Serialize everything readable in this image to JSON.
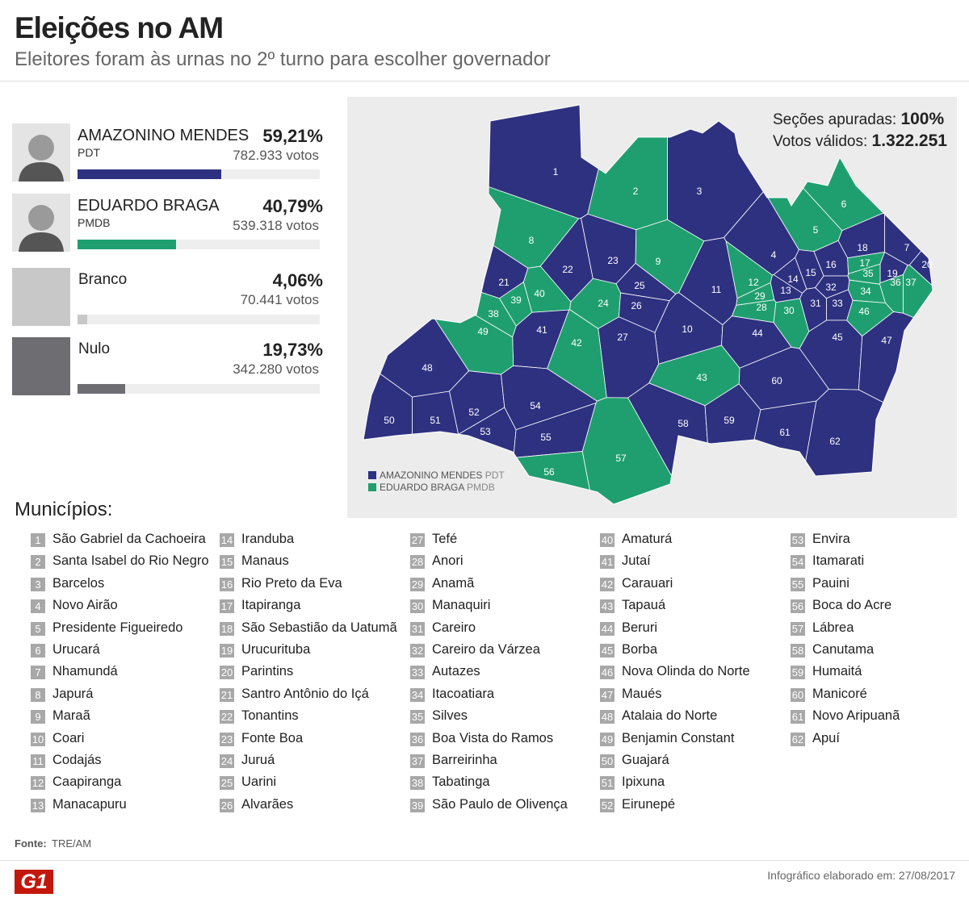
{
  "header": {
    "title": "Eleições no AM",
    "subtitle": "Eleitores foram às urnas no 2º turno para escolher governador"
  },
  "results": [
    {
      "name": "AMAZONINO MENDES",
      "party": "PDT",
      "percent": {
        "value": 59.21,
        "label": "59,21%"
      },
      "votes": "782.933 votos",
      "color": "#2e3180"
    },
    {
      "name": "EDUARDO BRAGA",
      "party": "PMDB",
      "percent": {
        "value": 40.79,
        "label": "40,79%"
      },
      "votes": "539.318 votos",
      "color": "#1f9f6f"
    },
    {
      "name": "Branco",
      "percent": {
        "value": 4.06,
        "label": "4,06%"
      },
      "votes": "70.441 votos",
      "color": "#c8c8c8"
    },
    {
      "name": "Nulo",
      "percent": {
        "value": 19.73,
        "label": "19,73%"
      },
      "votes": "342.280 votos",
      "color": "#6d6d72"
    }
  ],
  "summary": [
    {
      "label": "Seções apuradas:",
      "value": "100%"
    },
    {
      "label": "Votos válidos:",
      "value": "1.322.251"
    }
  ],
  "list_title": "Municípios:",
  "municipalities": [
    {
      "number": "1",
      "name": "São Gabriel da Cachoeira",
      "color": "#2e3180"
    },
    {
      "number": "2",
      "name": "Santa Isabel do Rio Negro",
      "color": "#1f9f6f"
    },
    {
      "number": "3",
      "name": "Barcelos",
      "color": "#2e3180"
    },
    {
      "number": "4",
      "name": "Novo Airão",
      "color": "#2e3180"
    },
    {
      "number": "5",
      "name": "Presidente Figueiredo",
      "color": "#1f9f6f"
    },
    {
      "number": "6",
      "name": "Urucará",
      "color": "#1f9f6f"
    },
    {
      "number": "7",
      "name": "Nhamundá",
      "color": "#2e3180"
    },
    {
      "number": "8",
      "name": "Japurá",
      "color": "#1f9f6f"
    },
    {
      "number": "9",
      "name": "Maraã",
      "color": "#1f9f6f"
    },
    {
      "number": "10",
      "name": "Coari",
      "color": "#2e3180"
    },
    {
      "number": "11",
      "name": "Codajás",
      "color": "#2e3180"
    },
    {
      "number": "12",
      "name": "Caapiranga",
      "color": "#1f9f6f"
    },
    {
      "number": "13",
      "name": "Manacapuru",
      "color": "#2e3180"
    },
    {
      "number": "14",
      "name": "Iranduba",
      "color": "#2e3180"
    },
    {
      "number": "15",
      "name": "Manaus",
      "color": "#2e3180"
    },
    {
      "number": "16",
      "name": "Rio Preto da Eva",
      "color": "#2e3180"
    },
    {
      "number": "17",
      "name": "Itapiranga",
      "color": "#1f9f6f"
    },
    {
      "number": "18",
      "name": "São Sebastião da Uatumã",
      "color": "#2e3180"
    },
    {
      "number": "19",
      "name": "Urucurituba",
      "color": "#2e3180"
    },
    {
      "number": "20",
      "name": "Parintins",
      "color": "#2e3180"
    },
    {
      "number": "21",
      "name": "Santro Antônio do Içá",
      "color": "#2e3180"
    },
    {
      "number": "22",
      "name": "Tonantins",
      "color": "#2e3180"
    },
    {
      "number": "23",
      "name": "Fonte Boa",
      "color": "#2e3180"
    },
    {
      "number": "24",
      "name": "Juruá",
      "color": "#1f9f6f"
    },
    {
      "number": "25",
      "name": "Uarini",
      "color": "#2e3180"
    },
    {
      "number": "26",
      "name": "Alvarães",
      "color": "#2e3180"
    },
    {
      "number": "27",
      "name": "Tefé",
      "color": "#2e3180"
    },
    {
      "number": "28",
      "name": "Anori",
      "color": "#1f9f6f"
    },
    {
      "number": "29",
      "name": "Anamã",
      "color": "#1f9f6f"
    },
    {
      "number": "30",
      "name": "Manaquiri",
      "color": "#1f9f6f"
    },
    {
      "number": "31",
      "name": "Careiro",
      "color": "#2e3180"
    },
    {
      "number": "32",
      "name": "Careiro da Várzea",
      "color": "#2e3180"
    },
    {
      "number": "33",
      "name": "Autazes",
      "color": "#2e3180"
    },
    {
      "number": "34",
      "name": "Itacoatiara",
      "color": "#1f9f6f"
    },
    {
      "number": "35",
      "name": "Silves",
      "color": "#1f9f6f"
    },
    {
      "number": "36",
      "name": "Boa Vista do Ramos",
      "color": "#1f9f6f"
    },
    {
      "number": "37",
      "name": "Barreirinha",
      "color": "#1f9f6f"
    },
    {
      "number": "38",
      "name": "Tabatinga",
      "color": "#1f9f6f"
    },
    {
      "number": "39",
      "name": "São Paulo de Olivença",
      "color": "#1f9f6f"
    },
    {
      "number": "40",
      "name": "Amaturá",
      "color": "#1f9f6f"
    },
    {
      "number": "41",
      "name": "Jutaí",
      "color": "#2e3180"
    },
    {
      "number": "42",
      "name": "Carauari",
      "color": "#1f9f6f"
    },
    {
      "number": "43",
      "name": "Tapauá",
      "color": "#1f9f6f"
    },
    {
      "number": "44",
      "name": "Beruri",
      "color": "#2e3180"
    },
    {
      "number": "45",
      "name": "Borba",
      "color": "#2e3180"
    },
    {
      "number": "46",
      "name": "Nova Olinda do Norte",
      "color": "#1f9f6f"
    },
    {
      "number": "47",
      "name": "Maués",
      "color": "#2e3180"
    },
    {
      "number": "48",
      "name": "Atalaia do Norte",
      "color": "#2e3180"
    },
    {
      "number": "49",
      "name": "Benjamin Constant",
      "color": "#1f9f6f"
    },
    {
      "number": "50",
      "name": "Guajará",
      "color": "#2e3180"
    },
    {
      "number": "51",
      "name": "Ipixuna",
      "color": "#2e3180"
    },
    {
      "number": "52",
      "name": "Eirunepé",
      "color": "#2e3180"
    },
    {
      "number": "53",
      "name": "Envira",
      "color": "#2e3180"
    },
    {
      "number": "54",
      "name": "Itamarati",
      "color": "#2e3180"
    },
    {
      "number": "55",
      "name": "Pauini",
      "color": "#2e3180"
    },
    {
      "number": "56",
      "name": "Boca do Acre",
      "color": "#1f9f6f"
    },
    {
      "number": "57",
      "name": "Lábrea",
      "color": "#1f9f6f"
    },
    {
      "number": "58",
      "name": "Canutama",
      "color": "#2e3180"
    },
    {
      "number": "59",
      "name": "Humaitá",
      "color": "#2e3180"
    },
    {
      "number": "60",
      "name": "Manicoré",
      "color": "#2e3180"
    },
    {
      "number": "61",
      "name": "Novo Aripuanã",
      "color": "#2e3180"
    },
    {
      "number": "62",
      "name": "Apuí",
      "color": "#2e3180"
    }
  ],
  "footer": {
    "source_label": "Fonte:",
    "source": "TRE/AM",
    "logo": "G1",
    "credit": "Infográfico elaborado em: 27/08/2017"
  }
}
